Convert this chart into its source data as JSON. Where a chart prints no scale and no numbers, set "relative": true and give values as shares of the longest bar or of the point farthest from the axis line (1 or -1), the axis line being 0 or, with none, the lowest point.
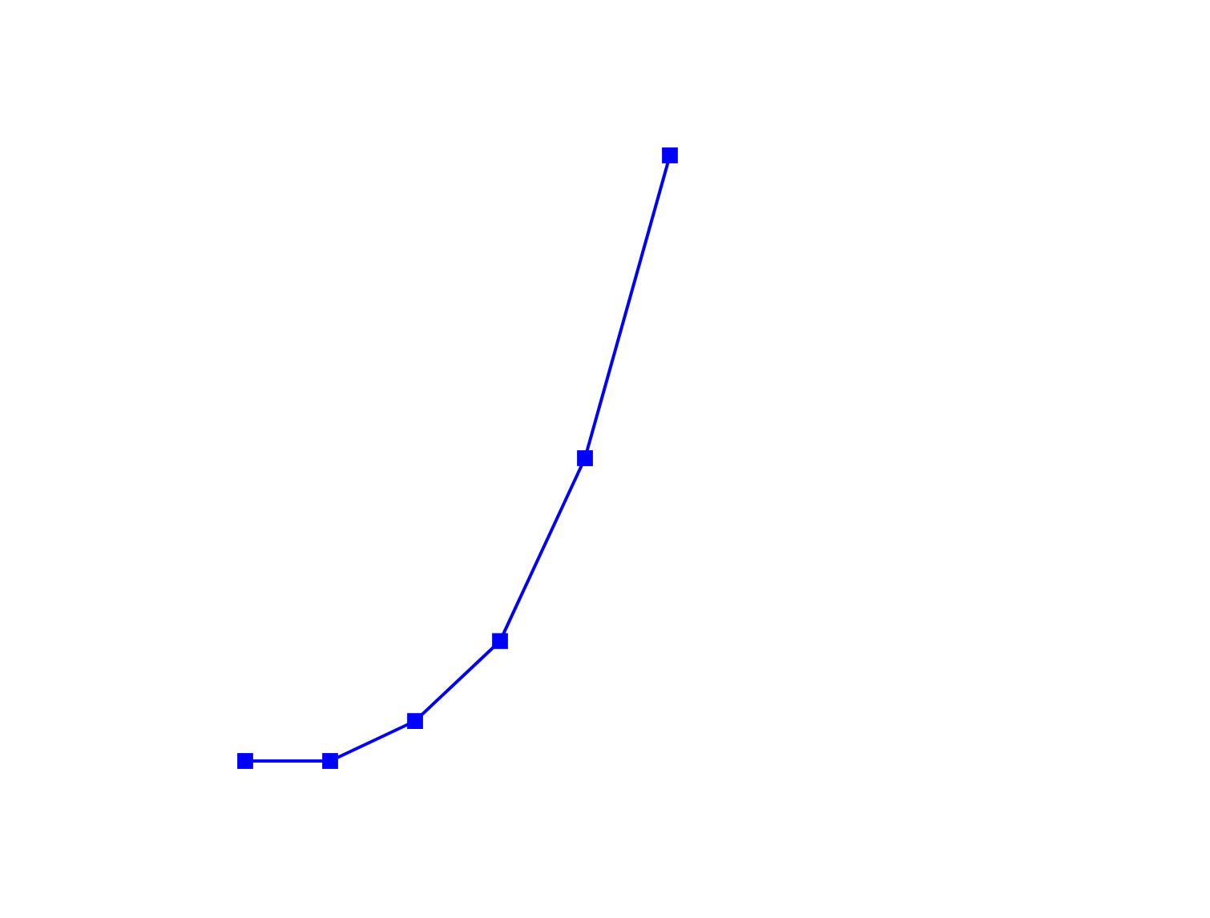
{
  "chart_data": {
    "type": "line",
    "relative": true,
    "marker": "square",
    "line_style": "solid",
    "categories": [
      null,
      null,
      null,
      null,
      null,
      null
    ],
    "series": [
      {
        "color": "#0000ff",
        "values": [
          0,
          0,
          0.066,
          0.198,
          0.5,
          1
        ]
      }
    ],
    "grid": false,
    "legend": false
  }
}
